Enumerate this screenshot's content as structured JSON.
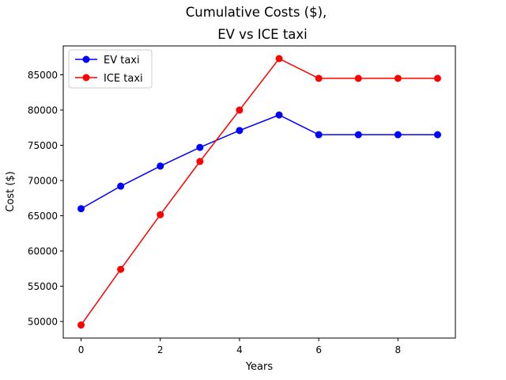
{
  "chart_data": {
    "type": "line",
    "title_line1": "Cumulative Costs ($),",
    "title_line2": "EV  vs ICE taxi",
    "xlabel": "Years",
    "ylabel": "Cost ($)",
    "xlim": [
      -0.45,
      9.45
    ],
    "ylim": [
      47650,
      89100
    ],
    "xticks": [
      0,
      2,
      4,
      6,
      8
    ],
    "yticks": [
      50000,
      55000,
      60000,
      65000,
      70000,
      75000,
      80000,
      85000
    ],
    "x": [
      0,
      1,
      2,
      3,
      4,
      5,
      6,
      7,
      8,
      9
    ],
    "series": [
      {
        "name": "EV taxi",
        "color": "#0000ff",
        "values": [
          66000,
          69200,
          72050,
          74700,
          77100,
          79300,
          76500,
          76500,
          76500,
          76500
        ]
      },
      {
        "name": "ICE taxi",
        "color": "#ff0000",
        "values": [
          49500,
          57400,
          65150,
          72700,
          80000,
          87300,
          84500,
          84500,
          84500,
          84500
        ]
      }
    ],
    "legend_position": "upper-left",
    "grid": false
  }
}
